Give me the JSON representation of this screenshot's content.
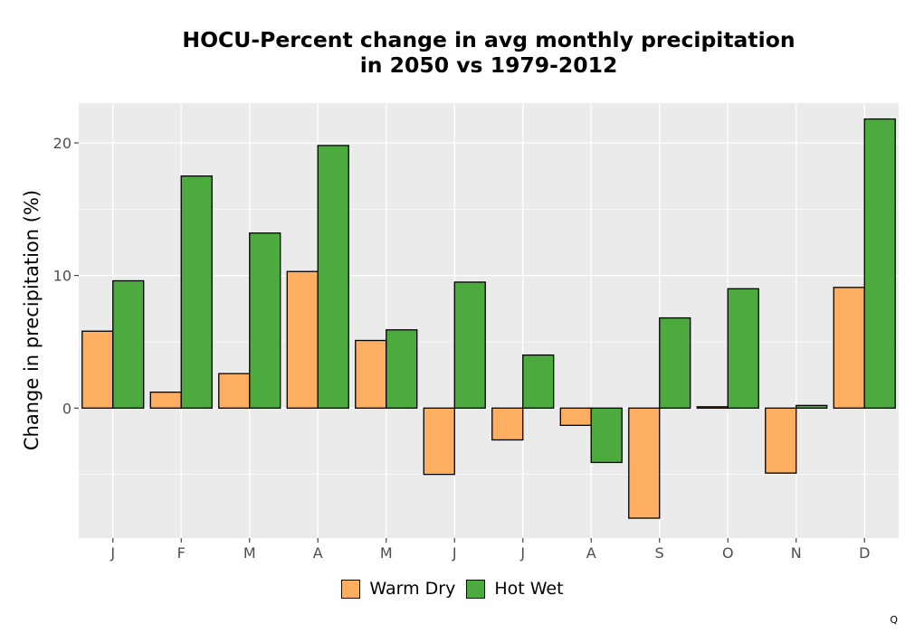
{
  "chart_data": {
    "type": "bar",
    "title_line1": "HOCU-Percent change in avg monthly precipitation",
    "title_line2": "in 2050 vs 1979-2012",
    "xlabel": "",
    "ylabel": "Change in precipitation (%)",
    "categories": [
      "J",
      "F",
      "M",
      "A",
      "M",
      "J",
      "J",
      "A",
      "S",
      "O",
      "N",
      "D"
    ],
    "ylim": [
      -9.8,
      23.0
    ],
    "yticks": [
      0,
      10,
      20
    ],
    "grid": true,
    "legend_position": "bottom",
    "series": [
      {
        "name": "Warm Dry",
        "color": "#FDAE61",
        "values": [
          5.8,
          1.2,
          2.6,
          10.3,
          5.1,
          -5.0,
          -2.4,
          -1.3,
          -8.3,
          0.1,
          -4.9,
          9.1
        ]
      },
      {
        "name": "Hot Wet",
        "color": "#4DAA3F",
        "values": [
          9.6,
          17.5,
          13.2,
          19.8,
          5.9,
          9.5,
          4.0,
          -4.1,
          6.8,
          9.0,
          0.2,
          21.8
        ]
      }
    ]
  },
  "corner_mark": "Q"
}
